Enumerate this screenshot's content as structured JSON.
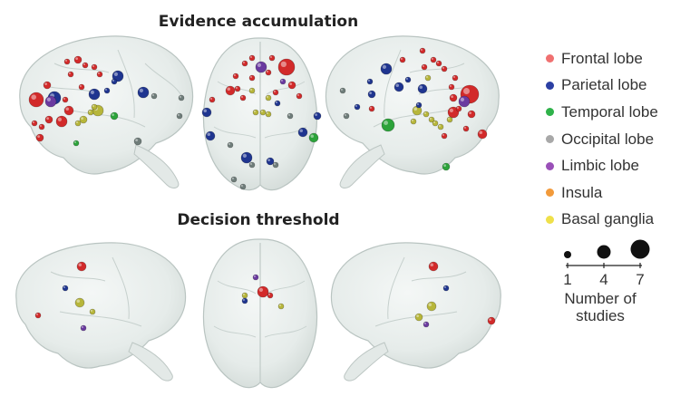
{
  "panels": {
    "top_title": "Evidence accumulation",
    "bottom_title": "Decision threshold"
  },
  "legend": {
    "items": [
      {
        "label": "Frontal lobe",
        "color": "#f07070"
      },
      {
        "label": "Parietal lobe",
        "color": "#2b3fa3"
      },
      {
        "label": "Temporal lobe",
        "color": "#2fb24a"
      },
      {
        "label": "Occipital lobe",
        "color": "#a8a8a8"
      },
      {
        "label": "Limbic lobe",
        "color": "#9a50b8"
      },
      {
        "label": "Insula",
        "color": "#f29a3a"
      },
      {
        "label": "Basal ganglia",
        "color": "#efe04a"
      }
    ]
  },
  "size_legend": {
    "ticks": [
      "1",
      "4",
      "7"
    ],
    "label_line1": "Number of",
    "label_line2": "studies"
  },
  "region_colors": {
    "frontal": "#d22a2a",
    "parietal": "#1f3590",
    "temporal": "#2ca33a",
    "occipital": "#6f7d7a",
    "limbic": "#6a3aa0",
    "insula": "#e8902e",
    "basal": "#b7b63a"
  }
}
